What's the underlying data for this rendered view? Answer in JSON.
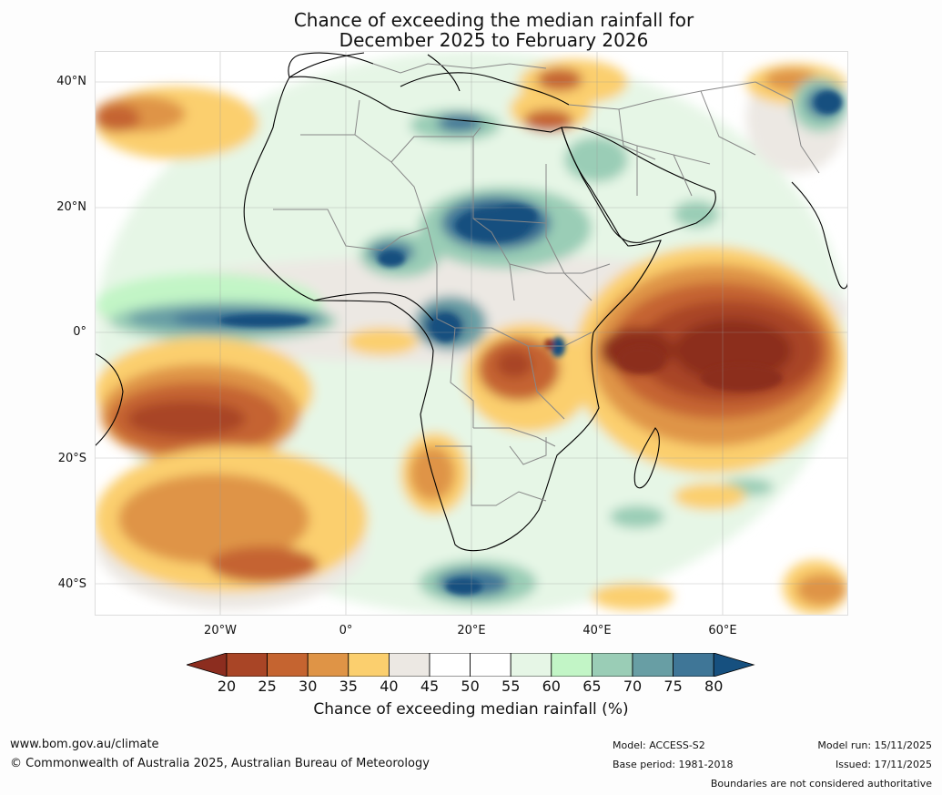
{
  "title": {
    "line1": "Chance of exceeding the median rainfall for",
    "line2": "December 2025 to February 2026"
  },
  "map": {
    "region": "Africa, Middle East and surrounding oceans",
    "lat_labels": [
      "40°N",
      "20°N",
      "0°",
      "20°S",
      "40°S"
    ],
    "lon_labels": [
      "20°W",
      "0°",
      "20°E",
      "40°E",
      "60°E"
    ],
    "colors": {
      "c20": "#8c2d1f",
      "c25": "#a94526",
      "c30": "#c56430",
      "c35": "#df9446",
      "c40": "#fbcf6e",
      "c45": "#ece8e3",
      "c50": "#ffffff",
      "c55": "#ffffff",
      "c60": "#e6f6e6",
      "c65": "#c2f5c6",
      "c70": "#9acdb6",
      "c75": "#689ea4",
      "c80": "#3f7697",
      "c85": "#16507f"
    }
  },
  "colorbar": {
    "ticks": [
      "20",
      "25",
      "30",
      "35",
      "40",
      "45",
      "50",
      "55",
      "60",
      "65",
      "70",
      "75",
      "80"
    ],
    "label": "Chance of exceeding median rainfall (%)"
  },
  "footer": {
    "website": "www.bom.gov.au/climate",
    "copyright": "© Commonwealth of Australia 2025, Australian Bureau of Meteorology",
    "model": "Model: ACCESS-S2",
    "base_period": "Base period: 1981-2018",
    "model_run": "Model run: 15/11/2025",
    "issued": "Issued: 17/11/2025",
    "disclaimer": "Boundaries are not considered authoritative"
  }
}
